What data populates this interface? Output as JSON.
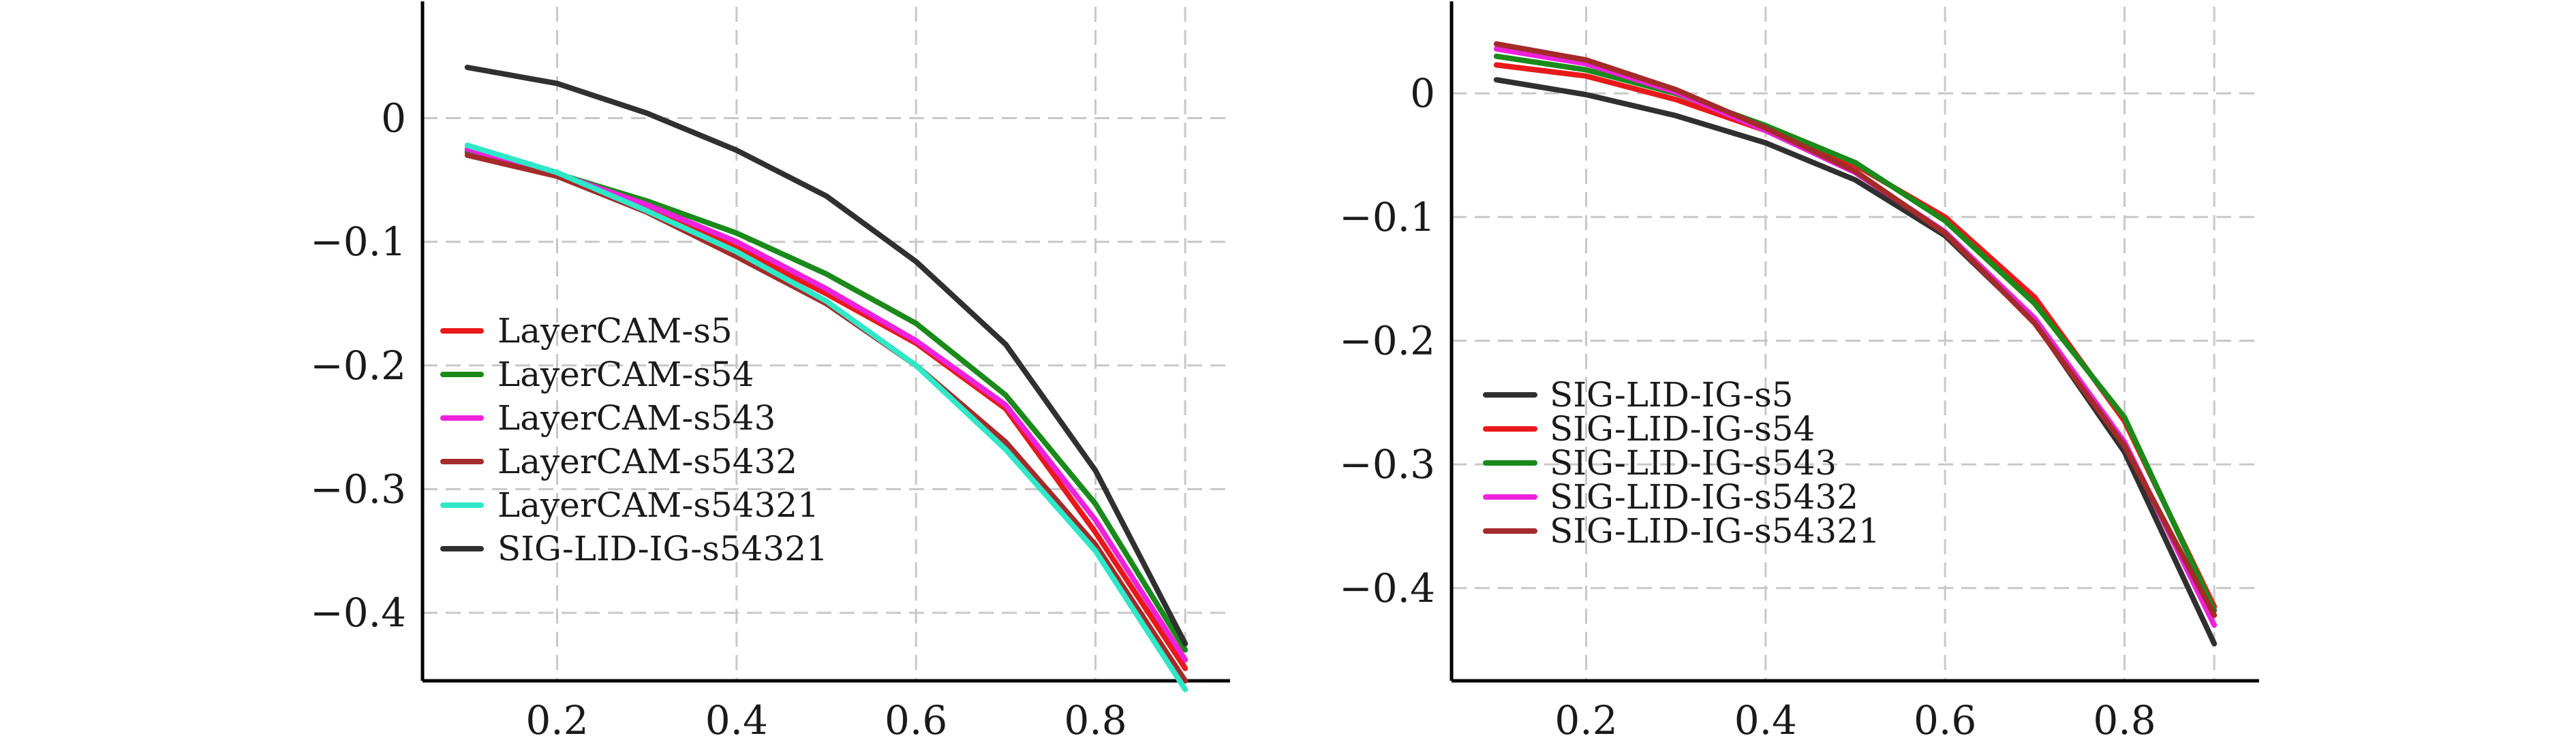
{
  "chart_data": [
    {
      "type": "line",
      "xlim": [
        0.05,
        0.95
      ],
      "ylim": [
        -0.455,
        0.09
      ],
      "x_ticks": [
        0.2,
        0.4,
        0.6,
        0.8
      ],
      "x_tick_labels": [
        "0.2",
        "0.4",
        "0.6",
        "0.8"
      ],
      "y_ticks": [
        0,
        -0.1,
        -0.2,
        -0.3,
        -0.4
      ],
      "y_tick_labels": [
        "0",
        "−0.1",
        "−0.2",
        "−0.3",
        "−0.4"
      ],
      "grid": true,
      "legend_position": "lower-left",
      "x": [
        0.1,
        0.2,
        0.3,
        0.4,
        0.5,
        0.6,
        0.7,
        0.8,
        0.9
      ],
      "series": [
        {
          "name": "LayerCAM-s5",
          "color": "#e8191b",
          "values": [
            -0.028,
            -0.046,
            -0.072,
            -0.105,
            -0.142,
            -0.182,
            -0.235,
            -0.335,
            -0.445
          ]
        },
        {
          "name": "LayerCAM-s54",
          "color": "#1a8a1a",
          "values": [
            -0.026,
            -0.045,
            -0.067,
            -0.093,
            -0.126,
            -0.166,
            -0.224,
            -0.312,
            -0.43
          ]
        },
        {
          "name": "LayerCAM-s543",
          "color": "#ee22dd",
          "values": [
            -0.025,
            -0.045,
            -0.07,
            -0.1,
            -0.138,
            -0.18,
            -0.232,
            -0.325,
            -0.438
          ]
        },
        {
          "name": "LayerCAM-s5432",
          "color": "#a52a2a",
          "values": [
            -0.03,
            -0.047,
            -0.076,
            -0.112,
            -0.15,
            -0.2,
            -0.262,
            -0.345,
            -0.455
          ]
        },
        {
          "name": "LayerCAM-s54321",
          "color": "#2ee8c8",
          "values": [
            -0.022,
            -0.044,
            -0.075,
            -0.108,
            -0.148,
            -0.2,
            -0.268,
            -0.35,
            -0.462
          ]
        },
        {
          "name": "SIG-LID-IG-s54321",
          "color": "#303030",
          "values": [
            0.041,
            0.028,
            0.004,
            -0.026,
            -0.063,
            -0.116,
            -0.183,
            -0.285,
            -0.425
          ]
        }
      ]
    },
    {
      "type": "line",
      "xlim": [
        0.05,
        0.95
      ],
      "ylim": [
        -0.475,
        0.07
      ],
      "x_ticks": [
        0.2,
        0.4,
        0.6,
        0.8
      ],
      "x_tick_labels": [
        "0.2",
        "0.4",
        "0.6",
        "0.8"
      ],
      "y_ticks": [
        0,
        -0.1,
        -0.2,
        -0.3,
        -0.4
      ],
      "y_tick_labels": [
        "0",
        "−0.1",
        "−0.2",
        "−0.3",
        "−0.4"
      ],
      "grid": true,
      "legend_position": "lower-left",
      "x": [
        0.1,
        0.2,
        0.3,
        0.4,
        0.5,
        0.6,
        0.7,
        0.8,
        0.9
      ],
      "series": [
        {
          "name": "SIG-LID-IG-s5",
          "color": "#303030",
          "values": [
            0.011,
            -0.001,
            -0.018,
            -0.04,
            -0.07,
            -0.115,
            -0.185,
            -0.29,
            -0.445
          ]
        },
        {
          "name": "SIG-LID-IG-s54",
          "color": "#e8191b",
          "values": [
            0.023,
            0.014,
            -0.005,
            -0.03,
            -0.058,
            -0.1,
            -0.165,
            -0.265,
            -0.415
          ]
        },
        {
          "name": "SIG-LID-IG-s543",
          "color": "#1a8a1a",
          "values": [
            0.03,
            0.019,
            0,
            -0.026,
            -0.056,
            -0.103,
            -0.17,
            -0.262,
            -0.418
          ]
        },
        {
          "name": "SIG-LID-IG-s5432",
          "color": "#ee22dd",
          "values": [
            0.036,
            0.024,
            0.001,
            -0.03,
            -0.064,
            -0.112,
            -0.182,
            -0.282,
            -0.43
          ]
        },
        {
          "name": "SIG-LID-IG-s54321",
          "color": "#a52a2a",
          "values": [
            0.04,
            0.027,
            0.003,
            -0.028,
            -0.063,
            -0.113,
            -0.186,
            -0.285,
            -0.422
          ]
        }
      ]
    }
  ]
}
